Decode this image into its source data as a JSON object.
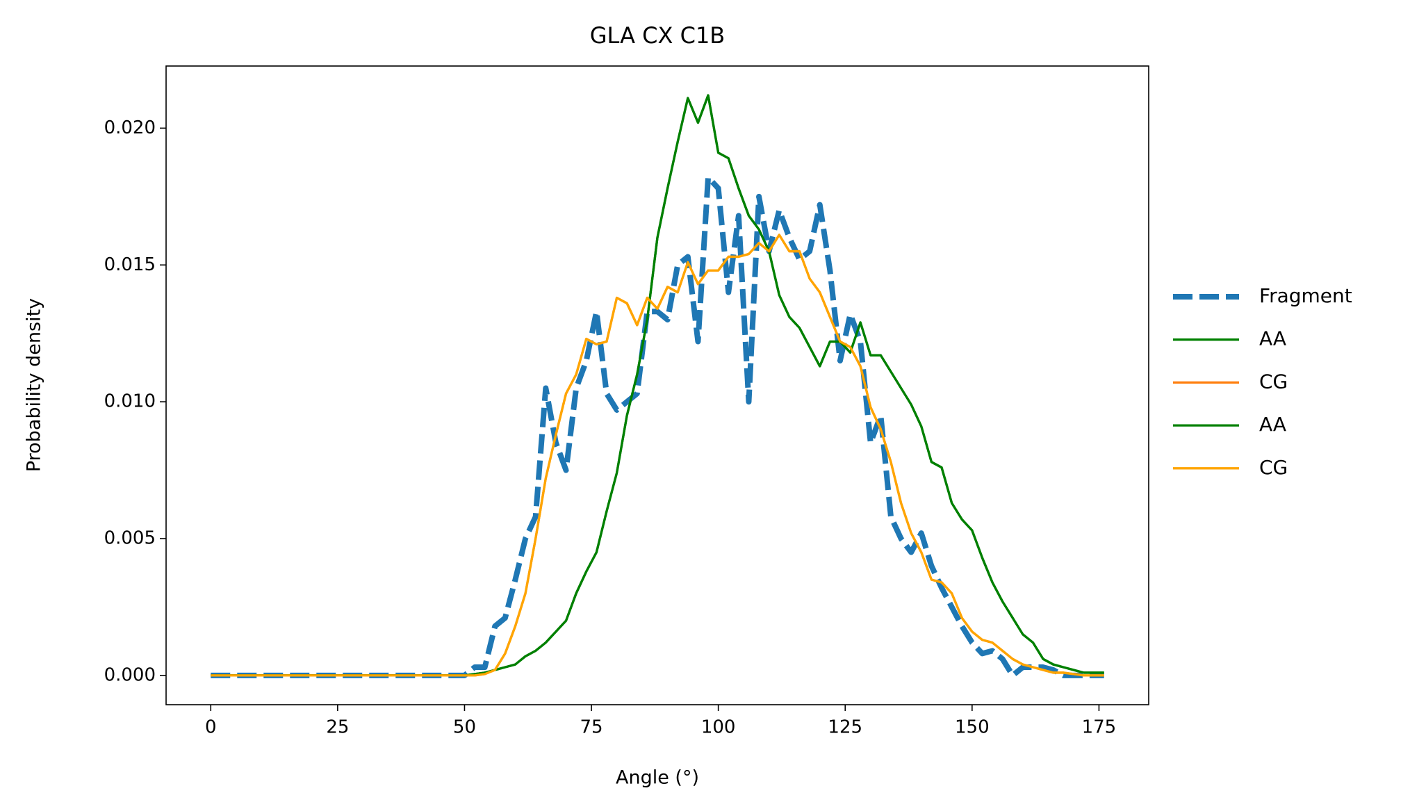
{
  "chart_data": {
    "type": "line",
    "title": "GLA CX C1B",
    "x_label": "Angle (°)",
    "y_label": "Probability density",
    "x": [
      0,
      2,
      4,
      6,
      8,
      10,
      12,
      14,
      16,
      18,
      20,
      22,
      24,
      26,
      28,
      30,
      32,
      34,
      36,
      38,
      40,
      42,
      44,
      46,
      48,
      50,
      52,
      54,
      56,
      58,
      60,
      62,
      64,
      66,
      68,
      70,
      72,
      74,
      76,
      78,
      80,
      82,
      84,
      86,
      88,
      90,
      92,
      94,
      96,
      98,
      100,
      102,
      104,
      106,
      108,
      110,
      112,
      114,
      116,
      118,
      120,
      122,
      124,
      126,
      128,
      130,
      132,
      134,
      136,
      138,
      140,
      142,
      144,
      146,
      148,
      150,
      152,
      154,
      156,
      158,
      160,
      162,
      164,
      166,
      168,
      170,
      172,
      174,
      176
    ],
    "xlim": [
      -8.8,
      184.8
    ],
    "ylim": [
      -0.00107,
      0.02227
    ],
    "xticks": [
      0,
      25,
      50,
      75,
      100,
      125,
      150,
      175
    ],
    "yticks": [
      {
        "value": 0,
        "label": "0.000"
      },
      {
        "value": 0.005,
        "label": "0.005"
      },
      {
        "value": 0.01,
        "label": "0.010"
      },
      {
        "value": 0.015,
        "label": "0.015"
      },
      {
        "value": 0.02,
        "label": "0.020"
      }
    ],
    "legend": "outside-right",
    "series": [
      {
        "name": "Fragment",
        "color": "#1f77b4",
        "linestyle": "dashed",
        "values": [
          0,
          0,
          0,
          0,
          0,
          0,
          0,
          0,
          0,
          0,
          0,
          0,
          0,
          0,
          0,
          0,
          0,
          0,
          0,
          0,
          0,
          0,
          0,
          0,
          0,
          0,
          0.0003,
          0.0003,
          0.0018,
          0.0021,
          0.0035,
          0.005,
          0.0058,
          0.0105,
          0.0085,
          0.0075,
          0.0105,
          0.0115,
          0.0133,
          0.0103,
          0.0097,
          0.01,
          0.0103,
          0.0133,
          0.0133,
          0.013,
          0.015,
          0.0153,
          0.0122,
          0.0182,
          0.0178,
          0.014,
          0.0168,
          0.01,
          0.0175,
          0.0155,
          0.017,
          0.016,
          0.0152,
          0.0155,
          0.0172,
          0.0148,
          0.0115,
          0.0132,
          0.0122,
          0.0085,
          0.0095,
          0.0058,
          0.005,
          0.0045,
          0.0052,
          0.004,
          0.0032,
          0.0025,
          0.0018,
          0.0012,
          0.0008,
          0.0009,
          0.0006,
          0,
          0.0003,
          0.0003,
          0.0003,
          0.0002,
          0,
          0,
          0,
          0,
          0
        ]
      },
      {
        "name": "AA",
        "color": "#008000",
        "linestyle": "solid",
        "values": [
          0,
          0,
          0,
          0,
          0,
          0,
          0,
          0,
          0,
          0,
          0,
          0,
          0,
          0,
          0,
          0,
          0,
          0,
          0,
          0,
          0,
          0,
          0,
          0,
          0,
          0,
          5e-05,
          0.0001,
          0.0002,
          0.0003,
          0.0004,
          0.0007,
          0.0009,
          0.0012,
          0.0016,
          0.002,
          0.003,
          0.0038,
          0.0045,
          0.006,
          0.0074,
          0.0095,
          0.011,
          0.013,
          0.016,
          0.0178,
          0.0195,
          0.0211,
          0.0202,
          0.0212,
          0.0191,
          0.0189,
          0.0178,
          0.0168,
          0.0163,
          0.0155,
          0.0139,
          0.0131,
          0.0127,
          0.012,
          0.0113,
          0.0122,
          0.0122,
          0.0118,
          0.0129,
          0.0117,
          0.0117,
          0.0111,
          0.0105,
          0.0099,
          0.0091,
          0.0078,
          0.0076,
          0.0063,
          0.0057,
          0.0053,
          0.0043,
          0.0034,
          0.0027,
          0.0021,
          0.0015,
          0.0012,
          0.0006,
          0.0004,
          0.0003,
          0.0002,
          0.0001,
          0.0001,
          0.0001
        ]
      },
      {
        "name": "CG",
        "color": "#ff7f0e",
        "linestyle": "solid",
        "values": [
          0,
          0,
          0,
          0,
          0,
          0,
          0,
          0,
          0,
          0,
          0,
          0,
          0,
          0,
          0,
          0,
          0,
          0,
          0,
          0,
          0,
          0,
          0,
          0,
          0,
          0,
          0,
          5e-05,
          0.0002,
          0.0008,
          0.0018,
          0.003,
          0.005,
          0.0072,
          0.0088,
          0.0103,
          0.011,
          0.0123,
          0.0121,
          0.0122,
          0.0138,
          0.0136,
          0.0128,
          0.0138,
          0.0134,
          0.0142,
          0.014,
          0.0151,
          0.0143,
          0.0148,
          0.0148,
          0.0153,
          0.0153,
          0.0154,
          0.0158,
          0.0155,
          0.0161,
          0.0155,
          0.0155,
          0.0145,
          0.014,
          0.0131,
          0.0122,
          0.012,
          0.0113,
          0.0098,
          0.009,
          0.0078,
          0.0063,
          0.0052,
          0.0045,
          0.0035,
          0.0034,
          0.003,
          0.0021,
          0.0016,
          0.0013,
          0.0012,
          0.0009,
          0.0006,
          0.0004,
          0.0003,
          0.0002,
          0.0001,
          0.0001,
          5e-05,
          0,
          0,
          0
        ]
      },
      {
        "name": "AA",
        "color": "#008000",
        "linestyle": "solid",
        "values": [
          0,
          0,
          0,
          0,
          0,
          0,
          0,
          0,
          0,
          0,
          0,
          0,
          0,
          0,
          0,
          0,
          0,
          0,
          0,
          0,
          0,
          0,
          0,
          0,
          0,
          0,
          5e-05,
          0.0001,
          0.0002,
          0.0003,
          0.0004,
          0.0007,
          0.0009,
          0.0012,
          0.0016,
          0.002,
          0.003,
          0.0038,
          0.0045,
          0.006,
          0.0074,
          0.0095,
          0.011,
          0.013,
          0.016,
          0.0178,
          0.0195,
          0.0211,
          0.0202,
          0.0212,
          0.0191,
          0.0189,
          0.0178,
          0.0168,
          0.0163,
          0.0155,
          0.0139,
          0.0131,
          0.0127,
          0.012,
          0.0113,
          0.0122,
          0.0122,
          0.0118,
          0.0129,
          0.0117,
          0.0117,
          0.0111,
          0.0105,
          0.0099,
          0.0091,
          0.0078,
          0.0076,
          0.0063,
          0.0057,
          0.0053,
          0.0043,
          0.0034,
          0.0027,
          0.0021,
          0.0015,
          0.0012,
          0.0006,
          0.0004,
          0.0003,
          0.0002,
          0.0001,
          0.0001,
          0.0001
        ]
      },
      {
        "name": "CG",
        "color": "#ffa500",
        "linestyle": "solid",
        "values": [
          0,
          0,
          0,
          0,
          0,
          0,
          0,
          0,
          0,
          0,
          0,
          0,
          0,
          0,
          0,
          0,
          0,
          0,
          0,
          0,
          0,
          0,
          0,
          0,
          0,
          0,
          0,
          5e-05,
          0.0002,
          0.0008,
          0.0018,
          0.003,
          0.005,
          0.0072,
          0.0088,
          0.0103,
          0.011,
          0.0123,
          0.0121,
          0.0122,
          0.0138,
          0.0136,
          0.0128,
          0.0138,
          0.0134,
          0.0142,
          0.014,
          0.0151,
          0.0143,
          0.0148,
          0.0148,
          0.0153,
          0.0153,
          0.0154,
          0.0158,
          0.0155,
          0.0161,
          0.0155,
          0.0155,
          0.0145,
          0.014,
          0.0131,
          0.0122,
          0.012,
          0.0113,
          0.0098,
          0.009,
          0.0078,
          0.0063,
          0.0052,
          0.0045,
          0.0035,
          0.0034,
          0.003,
          0.0021,
          0.0016,
          0.0013,
          0.0012,
          0.0009,
          0.0006,
          0.0004,
          0.0003,
          0.0002,
          0.0001,
          0.0001,
          5e-05,
          0,
          0,
          0
        ]
      }
    ]
  }
}
